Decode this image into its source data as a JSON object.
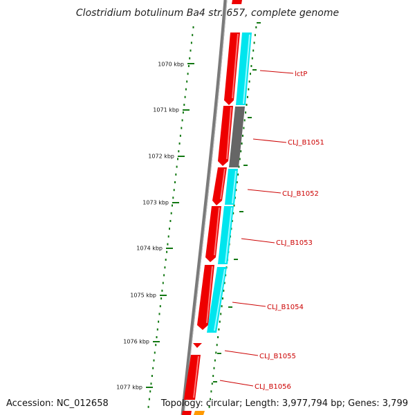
{
  "title": "Clostridium botulinum Ba4 str. 657, complete genome",
  "accession": "Accession: NC_012658",
  "topology": "Topology: circular; Length: 3,977,794 bp; Genes: 3,799",
  "colors": {
    "backbone": "#7a7a7a",
    "forward_cds": "#ee0000",
    "cog_cyan": "#00e5ee",
    "cog_gray": "#666666",
    "cog_orange": "#ff9900",
    "ticks": "#117711",
    "label": "#cc0000"
  },
  "kbp_ticks": [
    "1070 kbp",
    "1071 kbp",
    "1072 kbp",
    "1073 kbp",
    "1074 kbp",
    "1075 kbp",
    "1076 kbp",
    "1077 kbp"
  ],
  "gene_labels": [
    "lctP",
    "CLJ_B1051",
    "CLJ_B1052",
    "CLJ_B1053",
    "CLJ_B1054",
    "CLJ_B1055",
    "CLJ_B1056"
  ]
}
